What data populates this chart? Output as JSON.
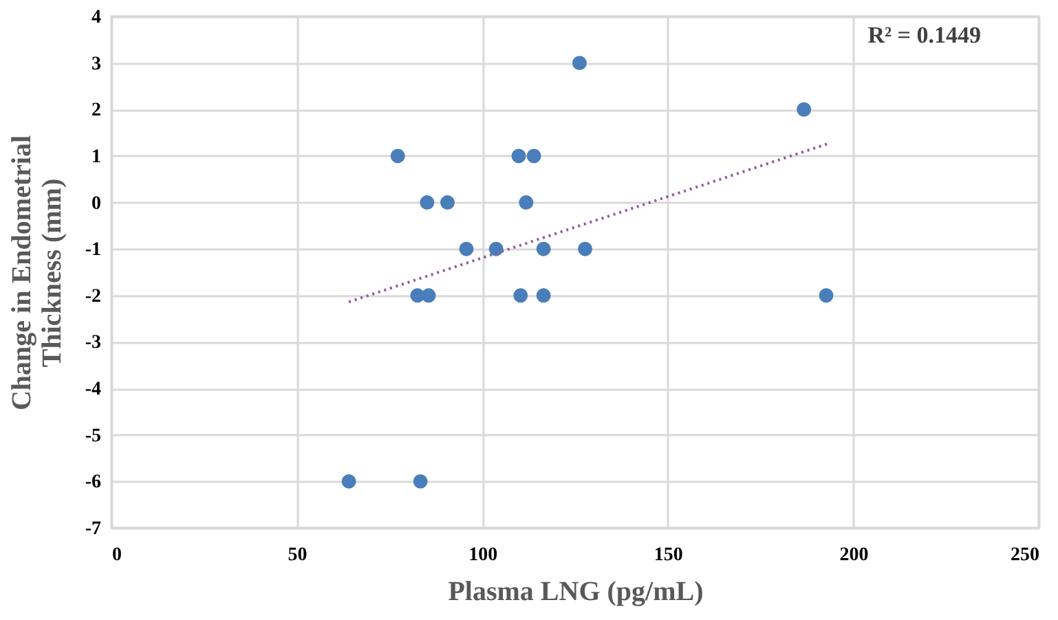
{
  "chart_data": {
    "type": "scatter",
    "xlabel": "Plasma LNG (pg/mL)",
    "ylabel": "Change in Endometrial Thickness (mm)",
    "annotations": [
      "R² = 0.1449"
    ],
    "xlim": [
      0,
      250
    ],
    "xticks": [
      0,
      50,
      100,
      150,
      200,
      250
    ],
    "ylim": [
      -7,
      4
    ],
    "yticks": [
      -7,
      -6,
      -5,
      -4,
      -3,
      -2,
      -1,
      0,
      1,
      2,
      3,
      4
    ],
    "grid": true,
    "series": [
      {
        "marker": "circle",
        "color": "#4a7ebb",
        "x": [
          126.2,
          77.2,
          109.8,
          113.9,
          85.1,
          90.6,
          111.8,
          95.7,
          103.7,
          116.5,
          127.7,
          82.5,
          85.5,
          110.3,
          116.5,
          64,
          83.3,
          186.7,
          192.7
        ],
        "values": [
          3,
          1,
          1,
          1,
          0,
          0,
          0,
          -1,
          -1,
          -1,
          -1,
          -2,
          -2,
          -2,
          -2,
          -6,
          -6,
          2,
          -2
        ]
      },
      {
        "type": "line",
        "line_style": "dotted",
        "color": "#8e5a9a",
        "x": [
          64,
          193.4
        ],
        "values": [
          -2.14,
          1.27
        ]
      }
    ]
  }
}
